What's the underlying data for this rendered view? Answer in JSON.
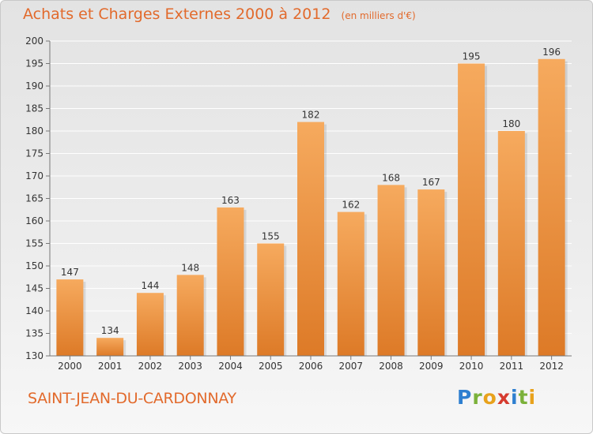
{
  "header": {
    "title": "Achats et Charges Externes 2000 à 2012",
    "subtitle": "(en milliers d'€)"
  },
  "footer": {
    "city": "SAINT-JEAN-DU-CARDONNAY",
    "logo": "Proxiti"
  },
  "colors": {
    "accent": "#e26a2c",
    "bar_light": "#f5a85a",
    "bar_dark": "#e07f2c"
  },
  "chart_data": {
    "type": "bar",
    "title": "Achats et Charges Externes 2000 à 2012",
    "subtitle": "(en milliers d'€)",
    "xlabel": "",
    "ylabel": "",
    "categories": [
      "2000",
      "2001",
      "2002",
      "2003",
      "2004",
      "2005",
      "2006",
      "2007",
      "2008",
      "2009",
      "2010",
      "2011",
      "2012"
    ],
    "values": [
      147,
      134,
      144,
      148,
      163,
      155,
      182,
      162,
      168,
      167,
      195,
      180,
      196
    ],
    "data_labels": [
      "147",
      "134",
      "144",
      "148",
      "163",
      "155",
      "182",
      "162",
      "168",
      "167",
      "195",
      "180",
      "196"
    ],
    "ylim": [
      130,
      200
    ],
    "yticks": [
      130,
      135,
      140,
      145,
      150,
      155,
      160,
      165,
      170,
      175,
      180,
      185,
      190,
      195,
      200
    ],
    "grid": true,
    "legend": "none"
  }
}
